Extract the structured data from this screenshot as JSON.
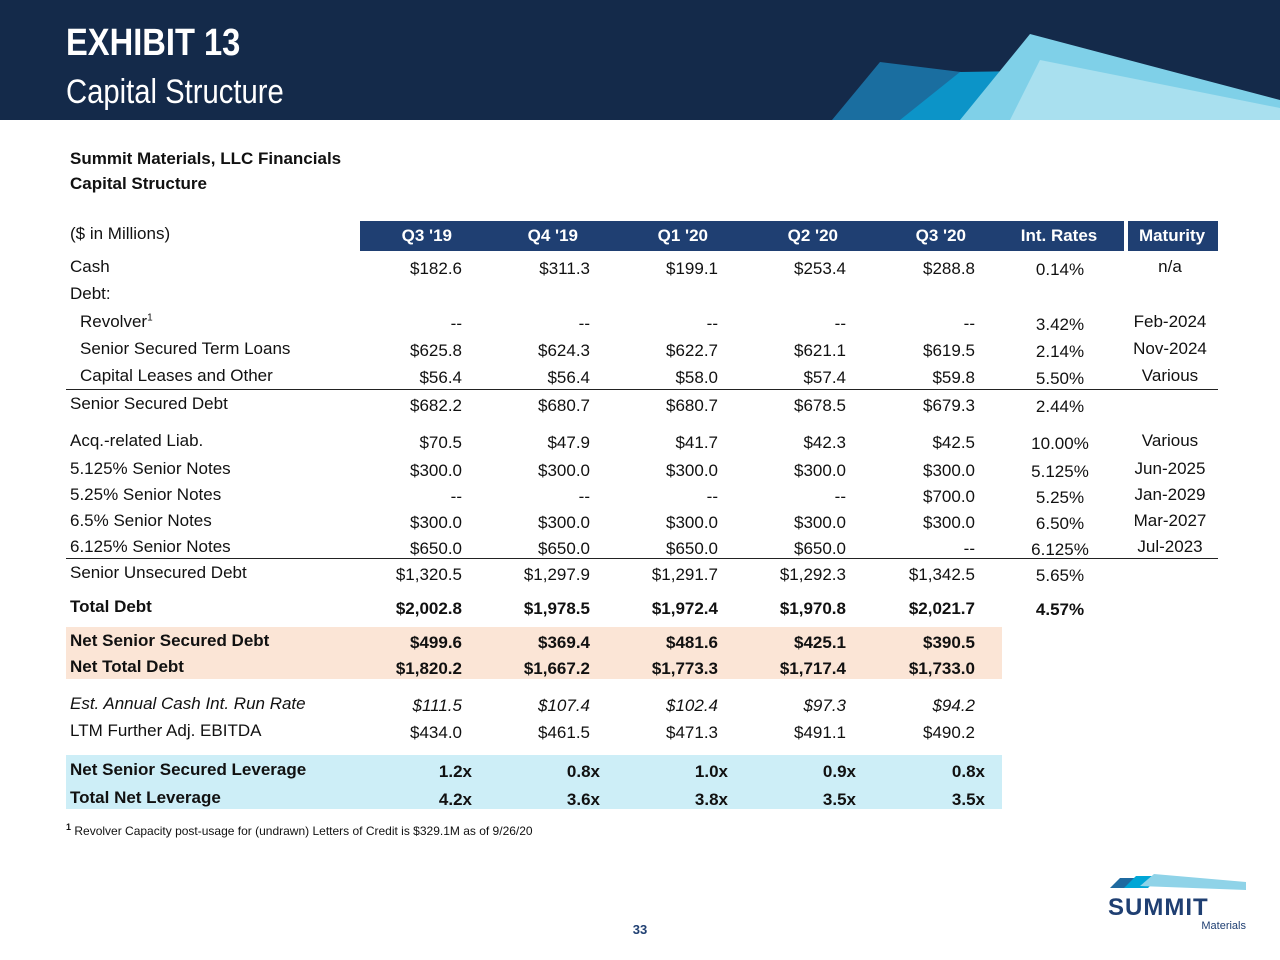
{
  "header": {
    "exhibit": "EXHIBIT 13",
    "subtitle": "Capital Structure"
  },
  "company_title": "Summit Materials, LLC Financials",
  "section_title": "Capital Structure",
  "units_label": "($ in Millions)",
  "columns": [
    "Q3 '19",
    "Q4 '19",
    "Q1 '20",
    "Q2 '20",
    "Q3 '20"
  ],
  "rate_header": "Int. Rates",
  "maturity_header": "Maturity",
  "rows": [
    {
      "label": "Cash",
      "values": [
        "$182.6",
        "$311.3",
        "$199.1",
        "$253.4",
        "$288.8"
      ],
      "rate": "0.14%",
      "maturity": "n/a"
    },
    {
      "label": "Debt:",
      "values": [
        "",
        "",
        "",
        "",
        ""
      ],
      "rate": "",
      "maturity": ""
    },
    {
      "label": "Revolver",
      "values": [
        "--",
        "--",
        "--",
        "--",
        "--"
      ],
      "rate": "3.42%",
      "maturity": "Feb-2024"
    },
    {
      "label": "Senior Secured Term Loans",
      "values": [
        "$625.8",
        "$624.3",
        "$622.7",
        "$621.1",
        "$619.5"
      ],
      "rate": "2.14%",
      "maturity": "Nov-2024"
    },
    {
      "label": "Capital Leases and Other",
      "values": [
        "$56.4",
        "$56.4",
        "$58.0",
        "$57.4",
        "$59.8"
      ],
      "rate": "5.50%",
      "maturity": "Various"
    },
    {
      "label": "Senior Secured Debt",
      "values": [
        "$682.2",
        "$680.7",
        "$680.7",
        "$678.5",
        "$679.3"
      ],
      "rate": "2.44%",
      "maturity": ""
    },
    {
      "label": "Acq.-related Liab.",
      "values": [
        "$70.5",
        "$47.9",
        "$41.7",
        "$42.3",
        "$42.5"
      ],
      "rate": "10.00%",
      "maturity": "Various"
    },
    {
      "label": "5.125% Senior Notes",
      "values": [
        "$300.0",
        "$300.0",
        "$300.0",
        "$300.0",
        "$300.0"
      ],
      "rate": "5.125%",
      "maturity": "Jun-2025"
    },
    {
      "label": "5.25% Senior Notes",
      "values": [
        "--",
        "--",
        "--",
        "--",
        "$700.0"
      ],
      "rate": "5.25%",
      "maturity": "Jan-2029"
    },
    {
      "label": "6.5% Senior Notes",
      "values": [
        "$300.0",
        "$300.0",
        "$300.0",
        "$300.0",
        "$300.0"
      ],
      "rate": "6.50%",
      "maturity": "Mar-2027"
    },
    {
      "label": "6.125% Senior Notes",
      "values": [
        "$650.0",
        "$650.0",
        "$650.0",
        "$650.0",
        "--"
      ],
      "rate": "6.125%",
      "maturity": "Jul-2023"
    },
    {
      "label": "Senior Unsecured Debt",
      "values": [
        "$1,320.5",
        "$1,297.9",
        "$1,291.7",
        "$1,292.3",
        "$1,342.5"
      ],
      "rate": "5.65%",
      "maturity": ""
    },
    {
      "label": "Total Debt",
      "values": [
        "$2,002.8",
        "$1,978.5",
        "$1,972.4",
        "$1,970.8",
        "$2,021.7"
      ],
      "rate": "4.57%",
      "maturity": ""
    },
    {
      "label": "Net Senior Secured Debt",
      "values": [
        "$499.6",
        "$369.4",
        "$481.6",
        "$425.1",
        "$390.5"
      ],
      "rate": "",
      "maturity": ""
    },
    {
      "label": "Net Total Debt",
      "values": [
        "$1,820.2",
        "$1,667.2",
        "$1,773.3",
        "$1,717.4",
        "$1,733.0"
      ],
      "rate": "",
      "maturity": ""
    },
    {
      "label": "Est. Annual Cash Int. Run Rate",
      "values": [
        "$111.5",
        "$107.4",
        "$102.4",
        "$97.3",
        "$94.2"
      ],
      "rate": "",
      "maturity": ""
    },
    {
      "label": "LTM Further Adj. EBITDA",
      "values": [
        "$434.0",
        "$461.5",
        "$471.3",
        "$491.1",
        "$490.2"
      ],
      "rate": "",
      "maturity": ""
    },
    {
      "label": "Net Senior Secured Leverage",
      "values": [
        "1.2x",
        "0.8x",
        "1.0x",
        "0.9x",
        "0.8x"
      ],
      "rate": "",
      "maturity": ""
    },
    {
      "label": "Total Net Leverage",
      "values": [
        "4.2x",
        "3.6x",
        "3.8x",
        "3.5x",
        "3.5x"
      ],
      "rate": "",
      "maturity": ""
    }
  ],
  "footnote_marker": "1",
  "footnote": "Revolver Capacity post-usage for (undrawn) Letters of Credit is $329.1M as of 9/26/20",
  "page_number": "33",
  "logo": {
    "name": "SUMMIT",
    "sub": "Materials"
  },
  "colors": {
    "header_bg": "#142a4a",
    "table_header": "#1f3f72",
    "peach_band": "#fbe5d6",
    "blue_band": "#cdeef7",
    "accent": "#00a6d6"
  }
}
